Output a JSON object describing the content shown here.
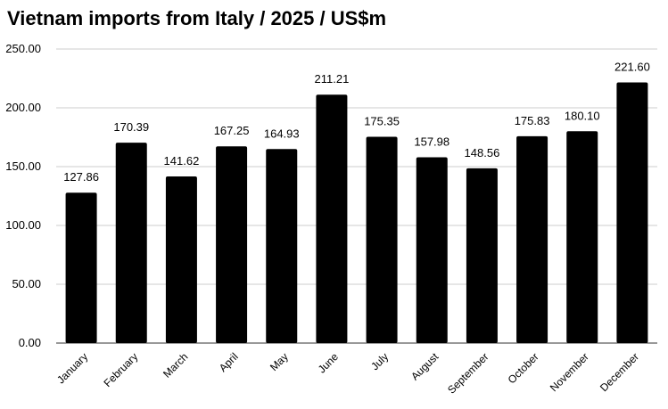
{
  "chart_data": {
    "type": "bar",
    "title": "Vietnam imports from Italy / 2025 / US$m",
    "xlabel": "",
    "ylabel": "",
    "ylim": [
      0,
      250
    ],
    "yticks": [
      "0.00",
      "50.00",
      "100.00",
      "150.00",
      "200.00",
      "250.00"
    ],
    "grid": true,
    "categories": [
      "January",
      "February",
      "March",
      "April",
      "May",
      "June",
      "July",
      "August",
      "September",
      "October",
      "November",
      "December"
    ],
    "values": [
      127.86,
      170.39,
      141.62,
      167.25,
      164.93,
      211.21,
      175.35,
      157.98,
      148.56,
      175.83,
      180.1,
      221.6
    ],
    "value_labels": [
      "127.86",
      "170.39",
      "141.62",
      "167.25",
      "164.93",
      "211.21",
      "175.35",
      "157.98",
      "148.56",
      "175.83",
      "180.10",
      "221.60"
    ],
    "bar_color": "#000000",
    "grid_color": "#cccccc"
  }
}
